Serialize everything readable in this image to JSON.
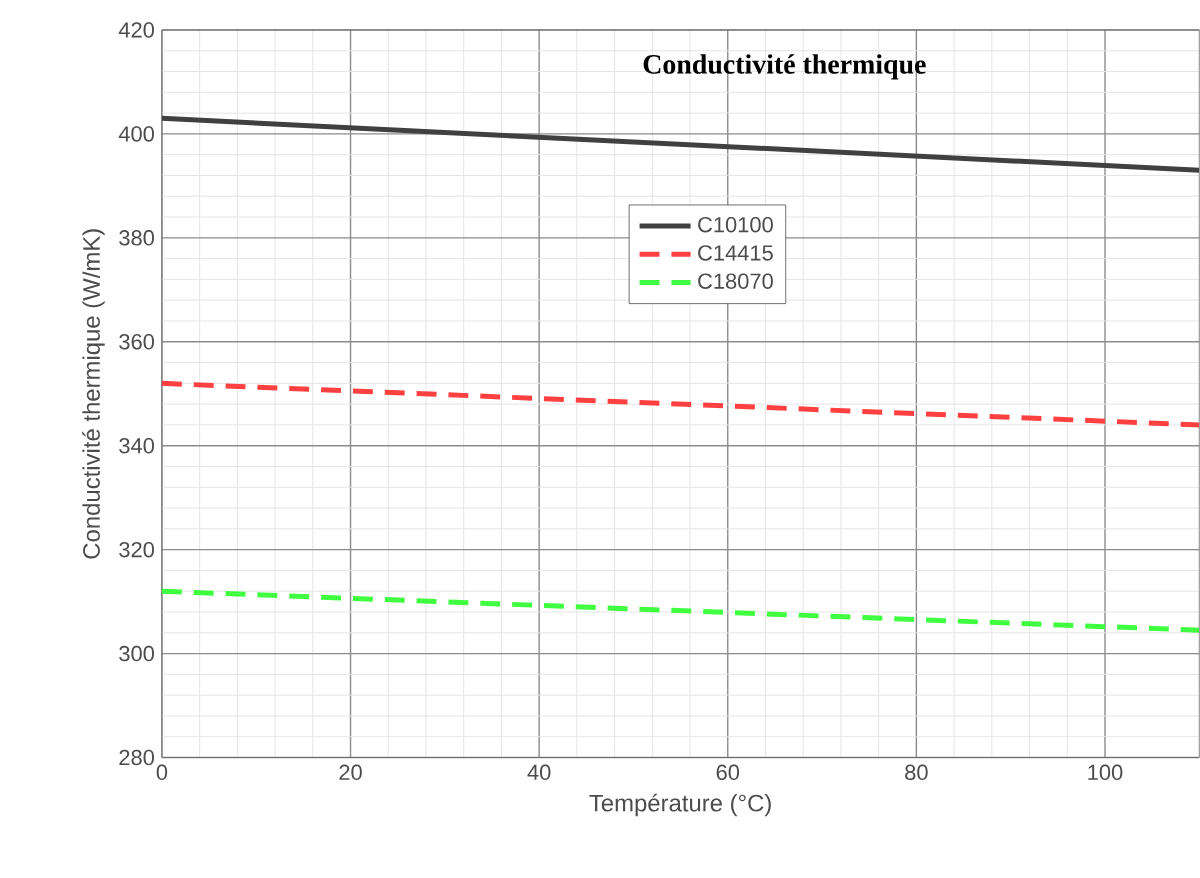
{
  "chart_data": {
    "type": "line",
    "title": "Conductivité thermique",
    "xlabel": "Température (°C)",
    "ylabel": "Conductivité thermique (W/mK)",
    "x": [
      0,
      110
    ],
    "series": [
      {
        "name": "C10100",
        "color": "#404040",
        "values": [
          403,
          393
        ],
        "line_style": "solid"
      },
      {
        "name": "C14415",
        "color": "#ff4040",
        "values": [
          352,
          344
        ],
        "line_style": "dashed"
      },
      {
        "name": "C18070",
        "color": "#40ff40",
        "values": [
          312,
          304.5
        ],
        "line_style": "dashed"
      }
    ],
    "xlim": [
      0,
      110
    ],
    "xticks": [
      0,
      20,
      40,
      60,
      80,
      100
    ],
    "ylim": [
      280,
      420
    ],
    "yticks": [
      280,
      300,
      320,
      340,
      360,
      380,
      400,
      420
    ],
    "grid": true,
    "legend": "top",
    "marker": "none"
  }
}
